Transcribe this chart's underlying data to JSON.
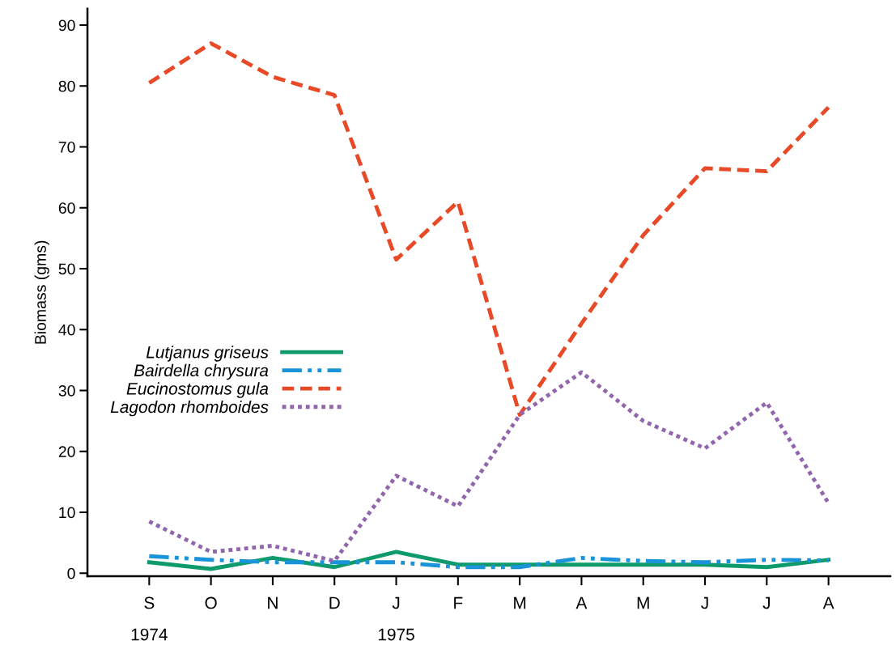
{
  "chart_data": {
    "type": "line",
    "ylabel": "Biomass (gms)",
    "categories": [
      "S\n1974",
      "O",
      "N",
      "D",
      "J\n1975",
      "F",
      "M",
      "A",
      "M",
      "J",
      "J",
      "A"
    ],
    "series": [
      {
        "name": "Lutjanus griseus",
        "color": "#0f9a6e",
        "line_style": "solid",
        "values": [
          1.8,
          0.7,
          2.5,
          1.0,
          3.5,
          1.4,
          1.4,
          1.4,
          1.4,
          1.4,
          1.0,
          2.2
        ]
      },
      {
        "name": "Bairdella chrysura",
        "color": "#1a94d8",
        "line_style": "dashdot",
        "values": [
          2.8,
          2.2,
          1.8,
          1.8,
          1.8,
          1.0,
          1.0,
          2.5,
          2.0,
          1.8,
          2.2,
          2.1
        ]
      },
      {
        "name": "Eucinostomus gula",
        "color": "#e84a27",
        "line_style": "dashed",
        "values": [
          80.5,
          87,
          81.5,
          78.5,
          51.5,
          61,
          26,
          41,
          55.5,
          66.5,
          66,
          76.5
        ]
      },
      {
        "name": "Lagodon rhomboides",
        "color": "#9166ad",
        "line_style": "dotted",
        "values": [
          8.5,
          3.5,
          4.5,
          2,
          16,
          11,
          26,
          33,
          25,
          20.5,
          28,
          11.5
        ]
      }
    ],
    "ylim": [
      -0.5,
      92.7
    ],
    "yticks": [
      0,
      10,
      20,
      30,
      40,
      50,
      60,
      70,
      80,
      90
    ],
    "grid": false,
    "legend": "left",
    "marker": "none"
  }
}
